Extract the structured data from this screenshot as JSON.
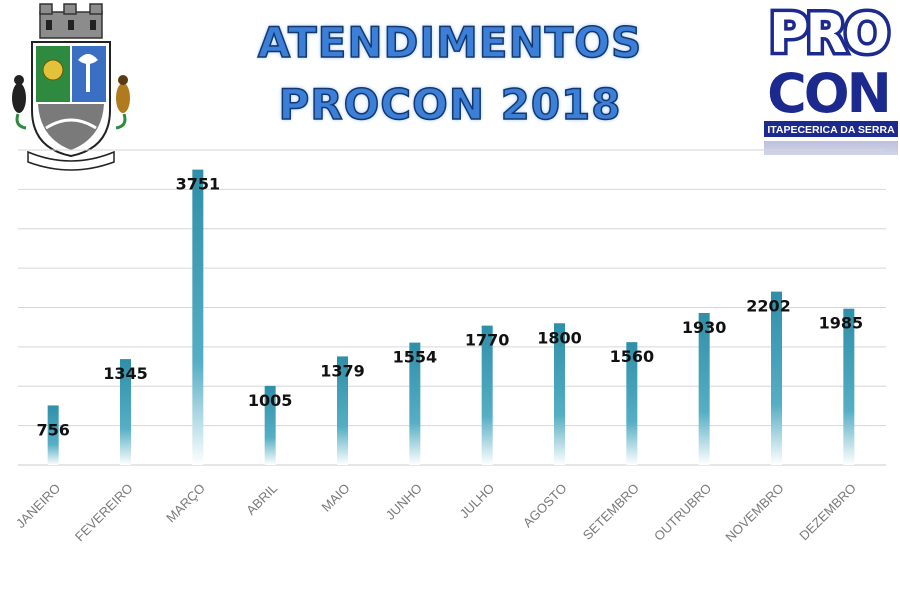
{
  "colors": {
    "bar": "#3a9bb2",
    "grid": "#d6d6d6",
    "title_fill": "#3b7fd8",
    "logo_blue": "#1c2a8f"
  },
  "logos": {
    "coat_of_arms_icon": "municipal-coat-of-arms",
    "procon_line1": "PRO",
    "procon_line2": "CON",
    "procon_caption": "ITAPECERICA DA SERRA"
  },
  "chart_data": {
    "type": "bar",
    "title_lines": [
      "ATENDIMENTOS",
      "PROCON 2018"
    ],
    "xlabel": "",
    "ylabel": "",
    "categories": [
      "JANEIRO",
      "FEVEREIRO",
      "MARÇO",
      "ABRIL",
      "MAIO",
      "JUNHO",
      "JULHO",
      "AGOSTO",
      "SETEMBRO",
      "OUTRUBRO",
      "NOVEMBRO",
      "DEZEMBRO"
    ],
    "series": [
      {
        "values": [
          756,
          1345,
          3751,
          1005,
          1379,
          1554,
          1770,
          1800,
          1560,
          1930,
          2202,
          1985
        ]
      }
    ],
    "ylim": [
      0,
      4000
    ],
    "y_tick_labels_shown": false,
    "grid": true,
    "data_labels": true,
    "legend": "none"
  }
}
